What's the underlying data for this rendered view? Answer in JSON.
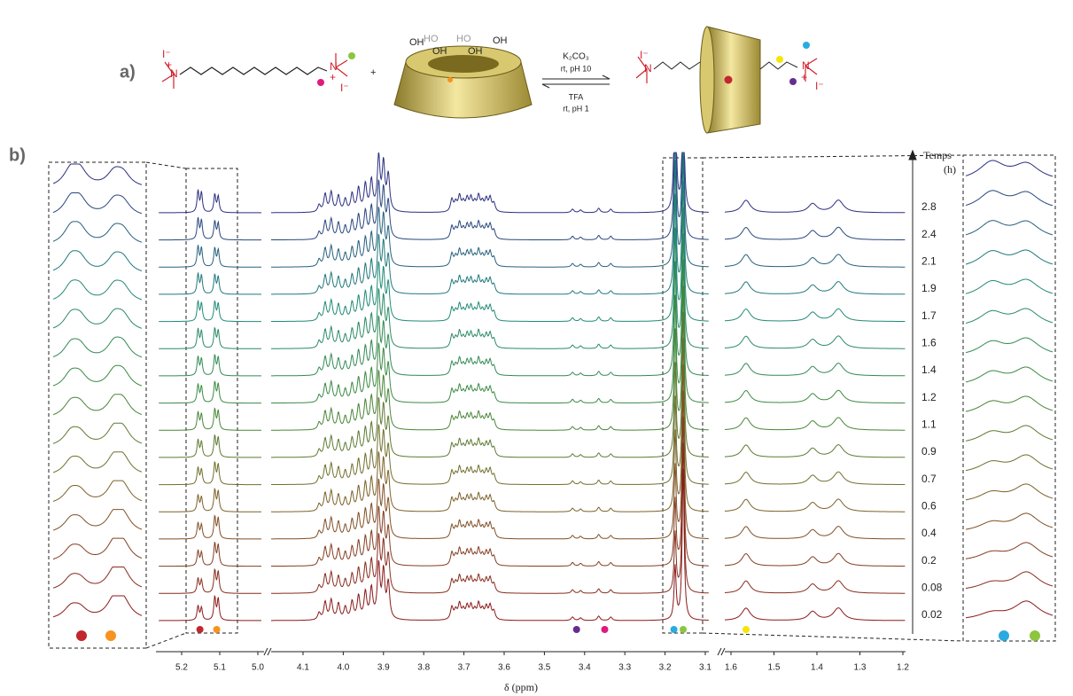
{
  "panel_a": {
    "label": "a)",
    "plus": "+",
    "forward_conditions": [
      "K₂CO₃",
      "rt, pH 10"
    ],
    "reverse_conditions": [
      "TFA",
      "rt, pH 1"
    ],
    "ammonium": "N",
    "charge": "+",
    "iodide": "I⁻",
    "hydroxyl": "OH",
    "hydroxyl_alt": "HO"
  },
  "panel_b": {
    "label": "b)",
    "x_axis": {
      "label": "δ (ppm)",
      "segments": [
        {
          "ticks": [
            5.2,
            5.1,
            {
              "value": 5,
              "label": "5.0"
            }
          ]
        },
        {
          "ticks": [
            4.1,
            {
              "value": 4,
              "label": "4.0"
            },
            3.9,
            3.8,
            3.7,
            3.6,
            3.5,
            3.4,
            3.3,
            3.2,
            3.1
          ]
        },
        {
          "ticks": [
            1.6,
            1.5,
            1.4,
            1.3,
            1.2
          ]
        }
      ]
    },
    "time_axis": {
      "label": "Temps",
      "unit": "(h)",
      "values": [
        2.8,
        2.4,
        2.1,
        1.9,
        1.7,
        1.6,
        1.4,
        1.2,
        1.1,
        0.9,
        0.7,
        0.6,
        0.4,
        0.2,
        0.08,
        0.02
      ]
    }
  }
}
